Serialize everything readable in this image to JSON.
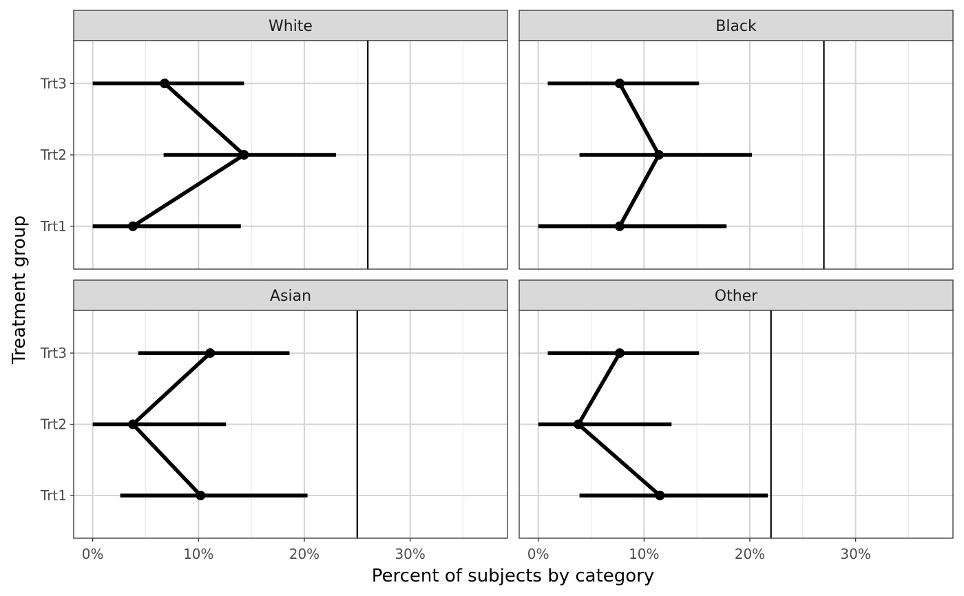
{
  "chart_data": {
    "type": "forest",
    "xlabel": "Percent of subjects by category",
    "ylabel": "Treatment group",
    "categories": [
      "Trt1",
      "Trt2",
      "Trt3"
    ],
    "xticks": [
      0,
      10,
      20,
      30
    ],
    "xtick_labels": [
      "0%",
      "10%",
      "20%",
      "30%"
    ],
    "xlim": [
      -1.8,
      39.2
    ],
    "facets": [
      {
        "label": "White",
        "reference": 26,
        "points": [
          {
            "group": "Trt1",
            "value": 3.8,
            "lower": 0,
            "upper": 14
          },
          {
            "group": "Trt2",
            "value": 14.3,
            "lower": 6.7,
            "upper": 23
          },
          {
            "group": "Trt3",
            "value": 6.8,
            "lower": 0,
            "upper": 14.3
          }
        ]
      },
      {
        "label": "Black",
        "reference": 27,
        "points": [
          {
            "group": "Trt1",
            "value": 7.7,
            "lower": 0,
            "upper": 17.8
          },
          {
            "group": "Trt2",
            "value": 11.4,
            "lower": 3.9,
            "upper": 20.2
          },
          {
            "group": "Trt3",
            "value": 7.7,
            "lower": 0.9,
            "upper": 15.2
          }
        ]
      },
      {
        "label": "Asian",
        "reference": 25,
        "points": [
          {
            "group": "Trt1",
            "value": 10.2,
            "lower": 2.6,
            "upper": 20.3
          },
          {
            "group": "Trt2",
            "value": 3.8,
            "lower": 0,
            "upper": 12.6
          },
          {
            "group": "Trt3",
            "value": 11.1,
            "lower": 4.3,
            "upper": 18.6
          }
        ]
      },
      {
        "label": "Other",
        "reference": 22,
        "points": [
          {
            "group": "Trt1",
            "value": 11.5,
            "lower": 3.9,
            "upper": 21.7
          },
          {
            "group": "Trt2",
            "value": 3.8,
            "lower": 0,
            "upper": 12.6
          },
          {
            "group": "Trt3",
            "value": 7.7,
            "lower": 0.9,
            "upper": 15.2
          }
        ]
      }
    ]
  }
}
